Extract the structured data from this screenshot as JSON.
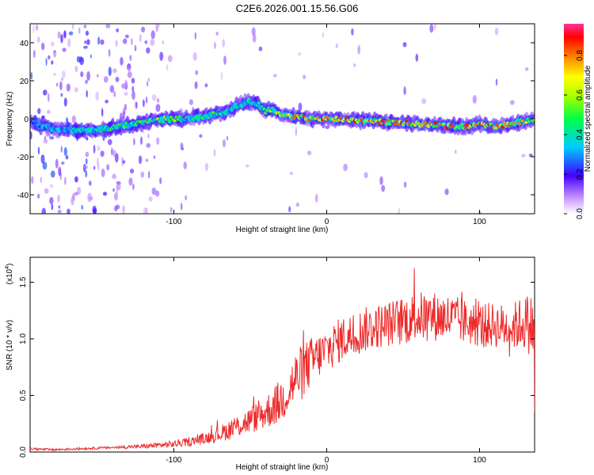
{
  "title": "C2E6.2026.001.15.56.G06",
  "colors": {
    "snr_line": "#ee2a2a",
    "axis": "#000000",
    "background": "#ffffff"
  },
  "chart_data": [
    {
      "type": "heatmap",
      "title": "C2E6.2026.001.15.56.G06",
      "xlabel": "Height of straight line (km)",
      "ylabel": "Frequency (Hz)",
      "xlim": [
        -194,
        136
      ],
      "ylim": [
        -50,
        50
      ],
      "xticks": [
        -100,
        0,
        100
      ],
      "xtick_labels": [
        "-100",
        "0",
        "100"
      ],
      "yticks": [
        -40,
        -20,
        0,
        20,
        40
      ],
      "ytick_labels": [
        "-40",
        "-20",
        "0",
        "20",
        "40"
      ],
      "ridge": {
        "description": "dominant spectral ridge (frequency vs height)",
        "x": [
          -194,
          -180,
          -165,
          -150,
          -135,
          -120,
          -105,
          -90,
          -75,
          -65,
          -58,
          -52,
          -45,
          -40,
          -35,
          -30,
          -20,
          -10,
          0,
          10,
          20,
          30,
          40,
          50,
          60,
          70,
          80,
          90,
          100,
          110,
          120,
          136
        ],
        "freq": [
          -2,
          -5,
          -6,
          -6,
          -4,
          -2,
          0,
          0,
          2,
          4,
          7,
          9,
          8,
          4,
          5,
          2,
          1,
          0,
          0,
          0,
          -1,
          -1,
          -2,
          -2,
          -3,
          -3,
          -4,
          -4,
          -3,
          -4,
          -3,
          0
        ],
        "amplitude": [
          0.3,
          0.4,
          0.45,
          0.5,
          0.55,
          0.6,
          0.65,
          0.5,
          0.55,
          0.45,
          0.4,
          0.55,
          0.5,
          0.6,
          0.6,
          0.8,
          0.85,
          0.85,
          0.9,
          0.85,
          0.9,
          0.9,
          0.95,
          0.9,
          0.95,
          0.9,
          0.95,
          0.9,
          0.9,
          0.95,
          0.9,
          0.7
        ]
      },
      "colorbar": {
        "label": "Normalized spectral amplitude",
        "range": [
          0.0,
          0.96
        ],
        "ticks": [
          0.0,
          0.2,
          0.4,
          0.6,
          0.8
        ],
        "tick_labels": [
          "0.0",
          "0.2",
          "0.4",
          "0.6",
          "0.8"
        ]
      }
    },
    {
      "type": "line",
      "xlabel": "Height of straight line (km)",
      "ylabel": "SNR (10 * v/v)",
      "y_multiplier": "(x10",
      "y_multiplier_exp": "4",
      "y_multiplier_close": ")",
      "xlim": [
        -194,
        136
      ],
      "ylim": [
        0,
        1.72
      ],
      "xticks": [
        -100,
        0,
        100
      ],
      "xtick_labels": [
        "-100",
        "0",
        "100"
      ],
      "yticks": [
        0.0,
        0.5,
        1.0,
        1.5
      ],
      "ytick_labels": [
        "0.0",
        "0.5",
        "1.0",
        "1.5"
      ],
      "series": [
        {
          "name": "SNR",
          "x": [
            -194,
            -180,
            -160,
            -140,
            -120,
            -100,
            -90,
            -80,
            -70,
            -60,
            -50,
            -40,
            -30,
            -25,
            -20,
            -15,
            -10,
            -5,
            0,
            5,
            10,
            15,
            20,
            25,
            30,
            40,
            50,
            60,
            70,
            80,
            90,
            100,
            110,
            120,
            130,
            136
          ],
          "y": [
            0.03,
            0.02,
            0.03,
            0.04,
            0.05,
            0.07,
            0.09,
            0.12,
            0.16,
            0.22,
            0.28,
            0.35,
            0.45,
            0.55,
            0.65,
            0.72,
            0.8,
            0.85,
            0.9,
            0.95,
            1.0,
            1.02,
            1.05,
            1.08,
            1.1,
            1.13,
            1.16,
            1.2,
            1.2,
            1.18,
            1.15,
            1.12,
            1.12,
            1.1,
            1.15,
            1.1
          ],
          "noise_amplitude": [
            0.01,
            0.01,
            0.01,
            0.01,
            0.02,
            0.03,
            0.04,
            0.05,
            0.07,
            0.1,
            0.12,
            0.15,
            0.2,
            0.22,
            0.25,
            0.25,
            0.22,
            0.2,
            0.2,
            0.2,
            0.2,
            0.2,
            0.2,
            0.2,
            0.2,
            0.2,
            0.22,
            0.22,
            0.22,
            0.22,
            0.2,
            0.2,
            0.2,
            0.2,
            0.25,
            0.3
          ]
        }
      ]
    }
  ]
}
